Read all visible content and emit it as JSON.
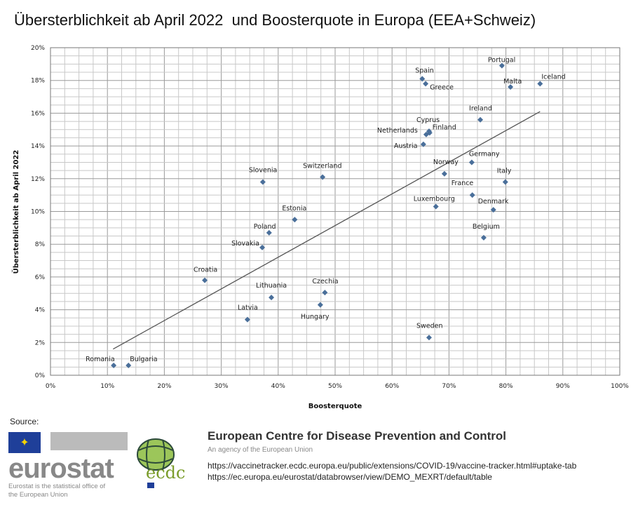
{
  "title": "Übersterblichkeit ab April 2022  und Boosterquote in Europa (EEA+Schweiz)",
  "chart_data": {
    "type": "scatter",
    "title": "Übersterblichkeit ab April 2022  und Boosterquote in Europa (EEA+Schweiz)",
    "xlabel": "Boosterquote",
    "ylabel": "Übersterblichkeit ab April 2022",
    "xlim": [
      0,
      100
    ],
    "ylim": [
      0,
      20
    ],
    "xticks": [
      "0%",
      "10%",
      "20%",
      "30%",
      "40%",
      "50%",
      "60%",
      "70%",
      "80%",
      "90%",
      "100%"
    ],
    "yticks": [
      "0%",
      "2%",
      "4%",
      "6%",
      "8%",
      "10%",
      "12%",
      "14%",
      "16%",
      "18%",
      "20%"
    ],
    "grid": true,
    "marker_color": "#4a6f9a",
    "points": [
      {
        "name": "Romania",
        "x": 11.1,
        "y": 0.6
      },
      {
        "name": "Bulgaria",
        "x": 13.7,
        "y": 0.6
      },
      {
        "name": "Croatia",
        "x": 27.1,
        "y": 5.8
      },
      {
        "name": "Latvia",
        "x": 34.6,
        "y": 3.4
      },
      {
        "name": "Lithuania",
        "x": 38.8,
        "y": 4.75
      },
      {
        "name": "Slovakia",
        "x": 37.2,
        "y": 7.8
      },
      {
        "name": "Poland",
        "x": 38.4,
        "y": 8.7
      },
      {
        "name": "Slovenia",
        "x": 37.3,
        "y": 11.8
      },
      {
        "name": "Estonia",
        "x": 42.9,
        "y": 9.5
      },
      {
        "name": "Switzerland",
        "x": 47.8,
        "y": 12.1
      },
      {
        "name": "Hungary",
        "x": 47.4,
        "y": 4.3
      },
      {
        "name": "Czechia",
        "x": 48.2,
        "y": 5.05
      },
      {
        "name": "Sweden",
        "x": 66.5,
        "y": 2.3
      },
      {
        "name": "Luxembourg",
        "x": 67.7,
        "y": 10.3
      },
      {
        "name": "Norway",
        "x": 69.2,
        "y": 12.3
      },
      {
        "name": "Austria",
        "x": 65.5,
        "y": 14.1
      },
      {
        "name": "Netherlands",
        "x": 66.0,
        "y": 14.7
      },
      {
        "name": "Cyprus",
        "x": 66.5,
        "y": 14.9
      },
      {
        "name": "Finland",
        "x": 66.6,
        "y": 14.8
      },
      {
        "name": "Spain",
        "x": 65.3,
        "y": 18.1
      },
      {
        "name": "Greece",
        "x": 65.9,
        "y": 17.8
      },
      {
        "name": "Germany",
        "x": 74.0,
        "y": 13.0
      },
      {
        "name": "France",
        "x": 74.1,
        "y": 11.0
      },
      {
        "name": "Ireland",
        "x": 75.5,
        "y": 15.6
      },
      {
        "name": "Belgium",
        "x": 76.1,
        "y": 8.4
      },
      {
        "name": "Denmark",
        "x": 77.8,
        "y": 10.1
      },
      {
        "name": "Italy",
        "x": 79.9,
        "y": 11.8
      },
      {
        "name": "Portugal",
        "x": 79.3,
        "y": 18.9
      },
      {
        "name": "Malta",
        "x": 80.8,
        "y": 17.6
      },
      {
        "name": "Iceland",
        "x": 86.0,
        "y": 17.8
      }
    ],
    "trendline": {
      "x": [
        11,
        86
      ],
      "y": [
        1.6,
        16.1
      ]
    }
  },
  "source": {
    "label": "Source:",
    "eurostat_logo": "eurostat",
    "eurostat_subtitle": "Eurostat is the statistical office of the European Union",
    "ecdc_logo": "ecdc",
    "ecdc_name": "European Centre for Disease Prevention and Control",
    "ecdc_subtitle": "An agency of the European Union",
    "urls": [
      "https://vaccinetracker.ecdc.europa.eu/public/extensions/COVID-19/vaccine-tracker.html#uptake-tab",
      "https://ec.europa.eu/eurostat/databrowser/view/DEMO_MEXRT/default/table"
    ]
  }
}
